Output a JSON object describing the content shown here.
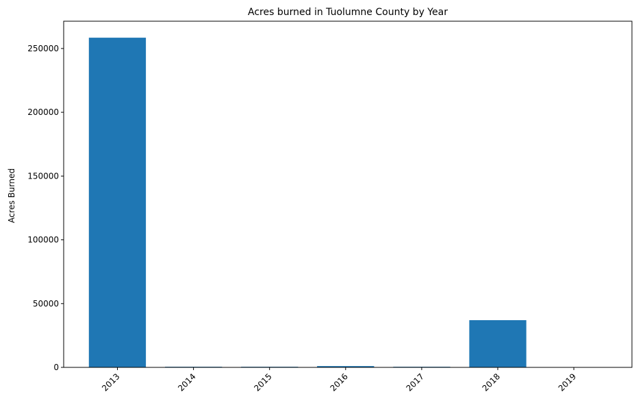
{
  "chart_data": {
    "type": "bar",
    "title": "Acres burned in Tuolumne County by Year",
    "xlabel": "",
    "ylabel": "Acres Burned",
    "categories": [
      "2013",
      "2014",
      "2015",
      "2016",
      "2017",
      "2018",
      "2019"
    ],
    "values": [
      258500,
      500,
      500,
      1000,
      500,
      37000,
      0
    ],
    "ylim": [
      0,
      271400
    ],
    "yticks": [
      0,
      50000,
      100000,
      150000,
      200000,
      250000
    ],
    "ytick_labels": [
      "0",
      "50000",
      "100000",
      "150000",
      "200000",
      "250000"
    ],
    "grid": false,
    "legend": "none",
    "colors": {
      "bar": "#1f77b4",
      "axis": "#000000",
      "background": "#ffffff"
    }
  }
}
